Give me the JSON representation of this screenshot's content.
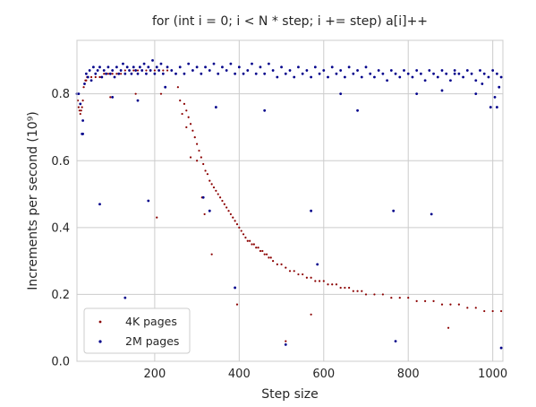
{
  "chart_data": {
    "type": "scatter",
    "title": "for (int i = 0; i < N * step; i += step) a[i]++",
    "xlabel": "Step size",
    "ylabel": "Increments per second (10⁹)",
    "xlim": [
      16,
      1024
    ],
    "ylim": [
      0,
      0.96
    ],
    "xticks": [
      200,
      400,
      600,
      800,
      1000
    ],
    "yticks": [
      0.0,
      0.2,
      0.4,
      0.6,
      0.8
    ],
    "grid": true,
    "legend_position": "lower-left",
    "series": [
      {
        "name": "4K pages",
        "color": "#8b0000",
        "points": [
          [
            16,
            0.8
          ],
          [
            18,
            0.78
          ],
          [
            20,
            0.76
          ],
          [
            22,
            0.75
          ],
          [
            24,
            0.74
          ],
          [
            26,
            0.75
          ],
          [
            28,
            0.76
          ],
          [
            30,
            0.78
          ],
          [
            32,
            0.82
          ],
          [
            34,
            0.83
          ],
          [
            36,
            0.84
          ],
          [
            38,
            0.84
          ],
          [
            40,
            0.85
          ],
          [
            50,
            0.85
          ],
          [
            60,
            0.85
          ],
          [
            70,
            0.85
          ],
          [
            80,
            0.86
          ],
          [
            90,
            0.86
          ],
          [
            100,
            0.86
          ],
          [
            110,
            0.86
          ],
          [
            120,
            0.86
          ],
          [
            130,
            0.87
          ],
          [
            140,
            0.87
          ],
          [
            150,
            0.87
          ],
          [
            160,
            0.87
          ],
          [
            170,
            0.87
          ],
          [
            180,
            0.87
          ],
          [
            190,
            0.87
          ],
          [
            200,
            0.87
          ],
          [
            210,
            0.87
          ],
          [
            220,
            0.87
          ],
          [
            230,
            0.87
          ],
          [
            240,
            0.87
          ],
          [
            250,
            0.86
          ],
          [
            70,
            0.47
          ],
          [
            95,
            0.79
          ],
          [
            130,
            0.19
          ],
          [
            155,
            0.8
          ],
          [
            185,
            0.48
          ],
          [
            205,
            0.43
          ],
          [
            215,
            0.8
          ],
          [
            255,
            0.82
          ],
          [
            260,
            0.78
          ],
          [
            265,
            0.74
          ],
          [
            275,
            0.7
          ],
          [
            285,
            0.61
          ],
          [
            300,
            0.6
          ],
          [
            312,
            0.49
          ],
          [
            318,
            0.44
          ],
          [
            335,
            0.32
          ],
          [
            395,
            0.17
          ],
          [
            510,
            0.06
          ],
          [
            570,
            0.14
          ],
          [
            770,
            0.06
          ],
          [
            895,
            0.1
          ],
          [
            1020,
            0.04
          ],
          [
            270,
            0.77
          ],
          [
            275,
            0.75
          ],
          [
            280,
            0.73
          ],
          [
            285,
            0.71
          ],
          [
            290,
            0.69
          ],
          [
            295,
            0.67
          ],
          [
            300,
            0.65
          ],
          [
            305,
            0.63
          ],
          [
            310,
            0.61
          ],
          [
            315,
            0.59
          ],
          [
            320,
            0.57
          ],
          [
            325,
            0.56
          ],
          [
            330,
            0.54
          ],
          [
            335,
            0.53
          ],
          [
            340,
            0.52
          ],
          [
            345,
            0.51
          ],
          [
            350,
            0.5
          ],
          [
            355,
            0.49
          ],
          [
            360,
            0.48
          ],
          [
            365,
            0.47
          ],
          [
            370,
            0.46
          ],
          [
            375,
            0.45
          ],
          [
            380,
            0.44
          ],
          [
            385,
            0.43
          ],
          [
            390,
            0.42
          ],
          [
            395,
            0.41
          ],
          [
            400,
            0.4
          ],
          [
            405,
            0.39
          ],
          [
            410,
            0.38
          ],
          [
            415,
            0.37
          ],
          [
            420,
            0.36
          ],
          [
            425,
            0.36
          ],
          [
            430,
            0.35
          ],
          [
            435,
            0.35
          ],
          [
            440,
            0.34
          ],
          [
            445,
            0.34
          ],
          [
            450,
            0.33
          ],
          [
            455,
            0.33
          ],
          [
            460,
            0.32
          ],
          [
            465,
            0.32
          ],
          [
            470,
            0.31
          ],
          [
            475,
            0.31
          ],
          [
            480,
            0.3
          ],
          [
            490,
            0.29
          ],
          [
            500,
            0.29
          ],
          [
            510,
            0.28
          ],
          [
            520,
            0.27
          ],
          [
            530,
            0.27
          ],
          [
            540,
            0.26
          ],
          [
            550,
            0.26
          ],
          [
            560,
            0.25
          ],
          [
            570,
            0.25
          ],
          [
            580,
            0.24
          ],
          [
            590,
            0.24
          ],
          [
            600,
            0.24
          ],
          [
            610,
            0.23
          ],
          [
            620,
            0.23
          ],
          [
            630,
            0.23
          ],
          [
            640,
            0.22
          ],
          [
            650,
            0.22
          ],
          [
            660,
            0.22
          ],
          [
            670,
            0.21
          ],
          [
            680,
            0.21
          ],
          [
            690,
            0.21
          ],
          [
            700,
            0.2
          ],
          [
            720,
            0.2
          ],
          [
            740,
            0.2
          ],
          [
            760,
            0.19
          ],
          [
            780,
            0.19
          ],
          [
            800,
            0.19
          ],
          [
            820,
            0.18
          ],
          [
            840,
            0.18
          ],
          [
            860,
            0.18
          ],
          [
            880,
            0.17
          ],
          [
            900,
            0.17
          ],
          [
            920,
            0.17
          ],
          [
            940,
            0.16
          ],
          [
            960,
            0.16
          ],
          [
            980,
            0.15
          ],
          [
            1000,
            0.15
          ],
          [
            1020,
            0.15
          ]
        ]
      },
      {
        "name": "2M pages",
        "color": "#00008b",
        "points": [
          [
            16,
            0.8
          ],
          [
            20,
            0.8
          ],
          [
            24,
            0.77
          ],
          [
            28,
            0.68
          ],
          [
            30,
            0.72
          ],
          [
            34,
            0.83
          ],
          [
            38,
            0.86
          ],
          [
            42,
            0.85
          ],
          [
            46,
            0.87
          ],
          [
            50,
            0.84
          ],
          [
            55,
            0.88
          ],
          [
            60,
            0.86
          ],
          [
            65,
            0.87
          ],
          [
            70,
            0.88
          ],
          [
            75,
            0.85
          ],
          [
            80,
            0.87
          ],
          [
            85,
            0.86
          ],
          [
            90,
            0.88
          ],
          [
            95,
            0.86
          ],
          [
            100,
            0.87
          ],
          [
            105,
            0.85
          ],
          [
            110,
            0.88
          ],
          [
            115,
            0.86
          ],
          [
            120,
            0.87
          ],
          [
            125,
            0.89
          ],
          [
            130,
            0.86
          ],
          [
            135,
            0.88
          ],
          [
            140,
            0.87
          ],
          [
            145,
            0.86
          ],
          [
            150,
            0.88
          ],
          [
            155,
            0.87
          ],
          [
            160,
            0.86
          ],
          [
            165,
            0.88
          ],
          [
            170,
            0.87
          ],
          [
            175,
            0.89
          ],
          [
            180,
            0.86
          ],
          [
            185,
            0.88
          ],
          [
            190,
            0.87
          ],
          [
            195,
            0.9
          ],
          [
            200,
            0.86
          ],
          [
            205,
            0.88
          ],
          [
            210,
            0.87
          ],
          [
            215,
            0.89
          ],
          [
            220,
            0.86
          ],
          [
            230,
            0.88
          ],
          [
            240,
            0.87
          ],
          [
            250,
            0.86
          ],
          [
            260,
            0.88
          ],
          [
            270,
            0.86
          ],
          [
            280,
            0.89
          ],
          [
            290,
            0.87
          ],
          [
            300,
            0.88
          ],
          [
            310,
            0.86
          ],
          [
            320,
            0.88
          ],
          [
            330,
            0.87
          ],
          [
            340,
            0.89
          ],
          [
            350,
            0.86
          ],
          [
            360,
            0.88
          ],
          [
            370,
            0.87
          ],
          [
            380,
            0.89
          ],
          [
            390,
            0.86
          ],
          [
            400,
            0.88
          ],
          [
            410,
            0.86
          ],
          [
            420,
            0.87
          ],
          [
            430,
            0.89
          ],
          [
            440,
            0.86
          ],
          [
            450,
            0.88
          ],
          [
            460,
            0.86
          ],
          [
            470,
            0.89
          ],
          [
            480,
            0.87
          ],
          [
            490,
            0.85
          ],
          [
            500,
            0.88
          ],
          [
            510,
            0.86
          ],
          [
            520,
            0.87
          ],
          [
            530,
            0.85
          ],
          [
            540,
            0.88
          ],
          [
            550,
            0.86
          ],
          [
            560,
            0.87
          ],
          [
            570,
            0.85
          ],
          [
            580,
            0.88
          ],
          [
            590,
            0.86
          ],
          [
            600,
            0.87
          ],
          [
            610,
            0.85
          ],
          [
            620,
            0.88
          ],
          [
            630,
            0.86
          ],
          [
            640,
            0.87
          ],
          [
            650,
            0.85
          ],
          [
            660,
            0.88
          ],
          [
            670,
            0.86
          ],
          [
            680,
            0.87
          ],
          [
            690,
            0.85
          ],
          [
            700,
            0.88
          ],
          [
            710,
            0.86
          ],
          [
            720,
            0.85
          ],
          [
            730,
            0.87
          ],
          [
            740,
            0.86
          ],
          [
            750,
            0.84
          ],
          [
            760,
            0.87
          ],
          [
            770,
            0.86
          ],
          [
            780,
            0.85
          ],
          [
            790,
            0.87
          ],
          [
            800,
            0.86
          ],
          [
            810,
            0.85
          ],
          [
            820,
            0.87
          ],
          [
            830,
            0.86
          ],
          [
            840,
            0.84
          ],
          [
            850,
            0.87
          ],
          [
            860,
            0.86
          ],
          [
            870,
            0.85
          ],
          [
            880,
            0.87
          ],
          [
            890,
            0.86
          ],
          [
            900,
            0.84
          ],
          [
            910,
            0.87
          ],
          [
            920,
            0.86
          ],
          [
            930,
            0.85
          ],
          [
            940,
            0.87
          ],
          [
            950,
            0.86
          ],
          [
            960,
            0.84
          ],
          [
            970,
            0.87
          ],
          [
            980,
            0.86
          ],
          [
            990,
            0.85
          ],
          [
            1000,
            0.87
          ],
          [
            1010,
            0.86
          ],
          [
            1020,
            0.85
          ],
          [
            30,
            0.68
          ],
          [
            70,
            0.47
          ],
          [
            100,
            0.79
          ],
          [
            130,
            0.19
          ],
          [
            160,
            0.78
          ],
          [
            185,
            0.48
          ],
          [
            225,
            0.82
          ],
          [
            315,
            0.49
          ],
          [
            330,
            0.45
          ],
          [
            345,
            0.76
          ],
          [
            390,
            0.22
          ],
          [
            460,
            0.75
          ],
          [
            510,
            0.05
          ],
          [
            570,
            0.45
          ],
          [
            585,
            0.29
          ],
          [
            640,
            0.8
          ],
          [
            680,
            0.75
          ],
          [
            765,
            0.45
          ],
          [
            770,
            0.06
          ],
          [
            820,
            0.8
          ],
          [
            855,
            0.44
          ],
          [
            880,
            0.81
          ],
          [
            910,
            0.86
          ],
          [
            960,
            0.8
          ],
          [
            995,
            0.76
          ],
          [
            1020,
            0.04
          ],
          [
            1010,
            0.76
          ],
          [
            1005,
            0.79
          ],
          [
            975,
            0.83
          ],
          [
            1015,
            0.82
          ]
        ]
      }
    ]
  }
}
